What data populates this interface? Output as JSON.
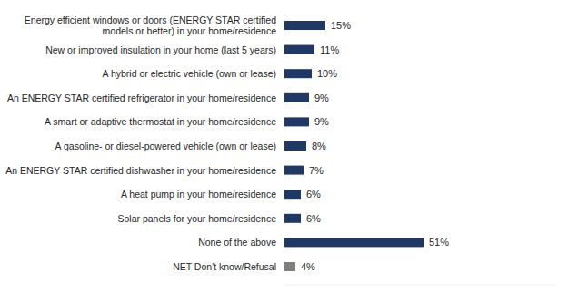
{
  "chart_data": {
    "type": "bar",
    "orientation": "horizontal",
    "categories": [
      "Energy efficient windows or doors (ENERGY STAR certified models or better) in your home/residence",
      "New or improved insulation in your home (last 5 years)",
      "A hybrid or electric vehicle (own or lease)",
      "An ENERGY STAR certified refrigerator in your home/residence",
      "A smart or adaptive thermostat in your home/residence",
      "A gasoline- or diesel-powered vehicle (own or lease)",
      "An ENERGY STAR certified dishwasher in your home/residence",
      "A heat pump in your home/residence",
      "Solar panels for your home/residence",
      "None of the above",
      "NET Don't know/Refusal"
    ],
    "values": [
      15,
      11,
      10,
      9,
      9,
      8,
      7,
      6,
      6,
      51,
      4
    ],
    "value_labels": [
      "15%",
      "11%",
      "10%",
      "9%",
      "9%",
      "8%",
      "7%",
      "6%",
      "6%",
      "51%",
      "4%"
    ],
    "colors": [
      "#203864",
      "#203864",
      "#203864",
      "#203864",
      "#203864",
      "#203864",
      "#203864",
      "#203864",
      "#203864",
      "#203864",
      "#7f7f7f"
    ],
    "xlim": [
      0,
      100
    ],
    "data_labels": true,
    "tick_labels": "y",
    "grid": false
  }
}
